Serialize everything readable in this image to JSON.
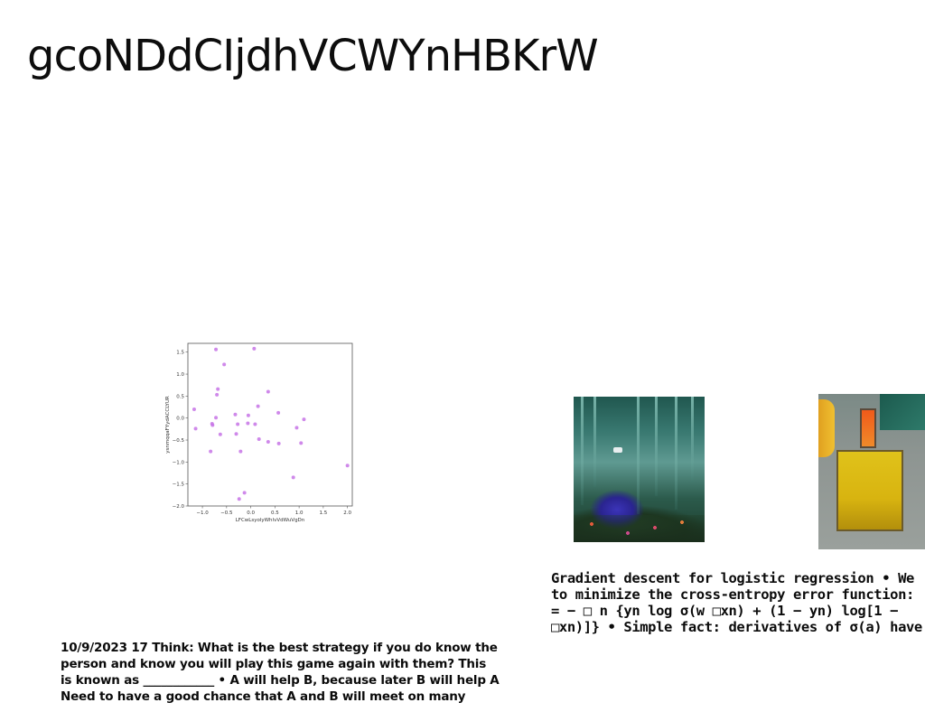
{
  "title": "gcoNDdCIjdhVCWYnHBKrW",
  "chart_data": {
    "type": "scatter",
    "xlabel": "LFCwLsyolyWhlvVdWuVgDn",
    "ylabel": "ysnmqqaFYydACCLYUR",
    "xlim": [
      -1.3,
      2.1
    ],
    "ylim": [
      -2.0,
      1.7
    ],
    "xticks": [
      -1.0,
      -0.5,
      0.0,
      0.5,
      1.0,
      1.5,
      2.0
    ],
    "yticks": [
      1.5,
      1.0,
      0.5,
      0.0,
      -0.5,
      -1.0,
      -1.5,
      -2.0
    ],
    "xtick_labels": [
      "−1.0",
      "−0.5",
      "0.0",
      "0.5",
      "1.0",
      "1.5",
      "2.0"
    ],
    "ytick_labels": [
      "1.5",
      "1.0",
      "0.5",
      "0.0",
      "−0.5",
      "−1.0",
      "−1.5",
      "−2.0"
    ],
    "point_color": "#c774e6",
    "points": [
      {
        "x": -0.72,
        "y": 1.56
      },
      {
        "x": 0.07,
        "y": 1.58
      },
      {
        "x": -0.55,
        "y": 1.22
      },
      {
        "x": -0.68,
        "y": 0.66
      },
      {
        "x": -0.7,
        "y": 0.53
      },
      {
        "x": 0.36,
        "y": 0.6
      },
      {
        "x": -1.17,
        "y": 0.2
      },
      {
        "x": 0.15,
        "y": 0.27
      },
      {
        "x": 0.57,
        "y": 0.12
      },
      {
        "x": -0.32,
        "y": 0.08
      },
      {
        "x": -0.05,
        "y": 0.06
      },
      {
        "x": -0.72,
        "y": 0.01
      },
      {
        "x": 1.1,
        "y": -0.03
      },
      {
        "x": -0.8,
        "y": -0.13
      },
      {
        "x": -0.79,
        "y": -0.16
      },
      {
        "x": -0.27,
        "y": -0.14
      },
      {
        "x": -0.06,
        "y": -0.12
      },
      {
        "x": 0.09,
        "y": -0.14
      },
      {
        "x": -1.14,
        "y": -0.24
      },
      {
        "x": 0.95,
        "y": -0.22
      },
      {
        "x": -0.63,
        "y": -0.37
      },
      {
        "x": -0.3,
        "y": -0.36
      },
      {
        "x": 0.17,
        "y": -0.48
      },
      {
        "x": 0.36,
        "y": -0.54
      },
      {
        "x": 0.58,
        "y": -0.58
      },
      {
        "x": 1.04,
        "y": -0.57
      },
      {
        "x": -0.83,
        "y": -0.76
      },
      {
        "x": -0.21,
        "y": -0.76
      },
      {
        "x": 2.0,
        "y": -1.08
      },
      {
        "x": 0.88,
        "y": -1.35
      },
      {
        "x": -0.13,
        "y": -1.7
      },
      {
        "x": -0.24,
        "y": -1.84
      }
    ]
  },
  "images": {
    "forest": "forest-willow-photo",
    "kitchen": "kitchen-topdown-photo"
  },
  "text_right": {
    "line1": "Gradient descent for logistic regression • We",
    "line2": "to minimize the cross-entropy error function:",
    "line3": "= − □ n {yn log σ(w □xn) + (1 − yn) log[1 −",
    "line4": "□xn)]} • Simple fact: derivatives of σ(a) have"
  },
  "text_left": {
    "line1": "10/9/2023 17 Think: What is the best strategy if you do know the",
    "line2": "person and know you will play this game again with them? This",
    "line3": "is known as ____________ • A will help B, because later B will help A",
    "line4": "Need to have a good chance that A and B will meet on many"
  }
}
